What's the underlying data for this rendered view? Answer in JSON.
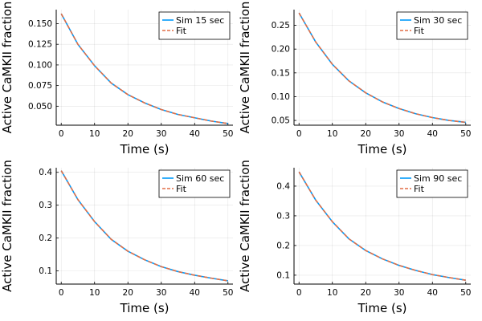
{
  "chart_data": [
    {
      "type": "line",
      "xlabel": "Time (s)",
      "ylabel": "Active CaMKII fraction",
      "xlim": [
        -1.5,
        51.5
      ],
      "ylim": [
        0.027,
        0.167
      ],
      "xticks": [
        0,
        10,
        20,
        30,
        40,
        50
      ],
      "xtick_labels": [
        "0",
        "10",
        "20",
        "30",
        "40",
        "50"
      ],
      "yticks": [
        0.05,
        0.075,
        0.1,
        0.125,
        0.15
      ],
      "ytick_labels": [
        "0.050",
        "0.075",
        "0.100",
        "0.125",
        "0.150"
      ],
      "grid": true,
      "legend_position": "top-right",
      "x": [
        0,
        5,
        10,
        15,
        20,
        25,
        30,
        35,
        40,
        45,
        50
      ],
      "series": [
        {
          "name": "Sim 15 sec",
          "color": "#009AFA",
          "style": "solid",
          "values": [
            0.162,
            0.125,
            0.099,
            0.078,
            0.064,
            0.054,
            0.046,
            0.04,
            0.036,
            0.032,
            0.029
          ]
        },
        {
          "name": "Fit",
          "color": "#E26F46",
          "style": "dashed",
          "values": [
            0.162,
            0.125,
            0.099,
            0.078,
            0.064,
            0.054,
            0.046,
            0.04,
            0.036,
            0.032,
            0.029
          ]
        }
      ]
    },
    {
      "type": "line",
      "xlabel": "Time (s)",
      "ylabel": "Active CaMKII fraction",
      "xlim": [
        -1.5,
        51.5
      ],
      "ylim": [
        0.04,
        0.283
      ],
      "xticks": [
        0,
        10,
        20,
        30,
        40,
        50
      ],
      "xtick_labels": [
        "0",
        "10",
        "20",
        "30",
        "40",
        "50"
      ],
      "yticks": [
        0.05,
        0.1,
        0.15,
        0.2,
        0.25
      ],
      "ytick_labels": [
        "0.05",
        "0.10",
        "0.15",
        "0.20",
        "0.25"
      ],
      "grid": true,
      "legend_position": "top-right",
      "x": [
        0,
        5,
        10,
        15,
        20,
        25,
        30,
        35,
        40,
        45,
        50
      ],
      "series": [
        {
          "name": "Sim 30 sec",
          "color": "#009AFA",
          "style": "solid",
          "values": [
            0.276,
            0.215,
            0.168,
            0.133,
            0.108,
            0.089,
            0.075,
            0.064,
            0.056,
            0.05,
            0.046
          ]
        },
        {
          "name": "Fit",
          "color": "#E26F46",
          "style": "dashed",
          "values": [
            0.276,
            0.215,
            0.168,
            0.133,
            0.108,
            0.089,
            0.075,
            0.064,
            0.056,
            0.05,
            0.046
          ]
        }
      ]
    },
    {
      "type": "line",
      "xlabel": "Time (s)",
      "ylabel": "Active CaMKII fraction",
      "xlim": [
        -1.5,
        51.5
      ],
      "ylim": [
        0.06,
        0.414
      ],
      "xticks": [
        0,
        10,
        20,
        30,
        40,
        50
      ],
      "xtick_labels": [
        "0",
        "10",
        "20",
        "30",
        "40",
        "50"
      ],
      "yticks": [
        0.1,
        0.2,
        0.3,
        0.4
      ],
      "ytick_labels": [
        "0.1",
        "0.2",
        "0.3",
        "0.4"
      ],
      "grid": true,
      "legend_position": "top-right",
      "x": [
        0,
        5,
        10,
        15,
        20,
        25,
        30,
        35,
        40,
        45,
        50
      ],
      "series": [
        {
          "name": "Sim 60 sec",
          "color": "#009AFA",
          "style": "solid",
          "values": [
            0.405,
            0.317,
            0.25,
            0.196,
            0.16,
            0.134,
            0.113,
            0.098,
            0.087,
            0.078,
            0.07
          ]
        },
        {
          "name": "Fit",
          "color": "#E26F46",
          "style": "dashed",
          "values": [
            0.405,
            0.317,
            0.25,
            0.196,
            0.16,
            0.134,
            0.113,
            0.098,
            0.087,
            0.078,
            0.07
          ]
        }
      ]
    },
    {
      "type": "line",
      "xlabel": "Time (s)",
      "ylabel": "Active CaMKII fraction",
      "xlim": [
        -1.5,
        51.5
      ],
      "ylim": [
        0.07,
        0.462
      ],
      "xticks": [
        0,
        10,
        20,
        30,
        40,
        50
      ],
      "xtick_labels": [
        "0",
        "10",
        "20",
        "30",
        "40",
        "50"
      ],
      "yticks": [
        0.1,
        0.2,
        0.3,
        0.4
      ],
      "ytick_labels": [
        "0.1",
        "0.2",
        "0.3",
        "0.4"
      ],
      "grid": true,
      "legend_position": "top-right",
      "x": [
        0,
        5,
        10,
        15,
        20,
        25,
        30,
        35,
        40,
        45,
        50
      ],
      "series": [
        {
          "name": "Sim 90 sec",
          "color": "#009AFA",
          "style": "solid",
          "values": [
            0.448,
            0.353,
            0.28,
            0.222,
            0.183,
            0.155,
            0.133,
            0.116,
            0.102,
            0.092,
            0.083
          ]
        },
        {
          "name": "Fit",
          "color": "#E26F46",
          "style": "dashed",
          "values": [
            0.448,
            0.353,
            0.28,
            0.222,
            0.183,
            0.155,
            0.133,
            0.116,
            0.102,
            0.092,
            0.083
          ]
        }
      ]
    }
  ]
}
